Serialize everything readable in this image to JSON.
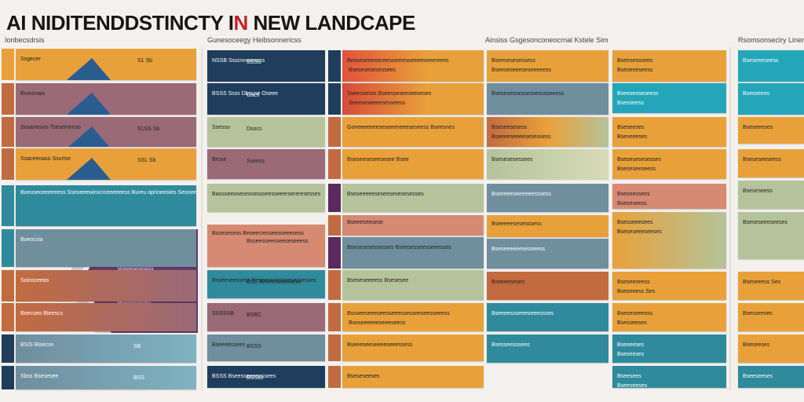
{
  "header": {
    "title_part1": "AI NIDITENDDSTINCTY I",
    "title_red": "N",
    "title_part2": " NEW LANDCAPE"
  },
  "subheadings": [
    "Ionbecsdrsis",
    "Gunesoceegy  Heibsonnericss",
    "Ainsiss  Gsgesonconeocrnal Kstele  Sim",
    "Rsomsonseciry  Liners"
  ],
  "columns": {
    "col1": {
      "items": [
        {
          "label": "Ssgecer",
          "value": "S1 Sb"
        },
        {
          "label": "Bruncnais",
          "value": ""
        },
        {
          "label": "Sosanesvis Tsesemenso",
          "value": "S1SS Sb"
        },
        {
          "label": "Ssaceenaso Ssurtse",
          "value": "SSL  Sb"
        },
        {
          "label": "Boeoseceeeeeess  Sseoeeewirocrceeeeeess  Bureu oprineeoies  Sesneeewereestesseseeeceeeere",
          "value": ""
        },
        {
          "label": "Boeocsia",
          "value": ""
        },
        {
          "label": "Soinsceeas",
          "value": ""
        },
        {
          "label": "Boecseo Bteescs",
          "value": ""
        },
        {
          "label": "BSIS Bisecse",
          "value": "SB"
        },
        {
          "label": "Sbss Bsesesee",
          "value": "BSS"
        }
      ],
      "panel_lines": [
        "Bsee Rsesreerw",
        "Sseesoeeeesesess",
        "Ssseoeeeresees",
        "Bseeesesesess",
        "Bsesseessess",
        "Sesesasses",
        "Boesesesees",
        "Bseeeesesess",
        "Bseseses Bs",
        "Bsesess Bsee"
      ]
    },
    "col2": {
      "items": [
        {
          "label": "NSSB Ssscnnereress",
          "value": "SSSS"
        },
        {
          "label": "BSSS  Ssss Dbscne Oseee",
          "value": "Gscs"
        },
        {
          "label": "Ssesso",
          "value": "Dsocs"
        },
        {
          "label": "Brose",
          "value": "Sseess"
        },
        {
          "label": "Baosseeosecesnessseesseeersereresesses",
          "value": ""
        },
        {
          "label": "Bssesesess Beseecresseesseeesess",
          "value": "Bsseesseesseeseseeess"
        },
        {
          "label": "Bsseeseessess   Beseessnesseesessesses",
          "value": "BSC  Beseesseessess"
        },
        {
          "label": "SSSSSB",
          "value": "BSBC"
        },
        {
          "label": "Bseeeessees",
          "value": "BSSS"
        },
        {
          "label": "BSSS Bseesseeeeessees",
          "value": "BSSss"
        }
      ]
    },
    "col3": {
      "items": [
        {
          "label": "Besseseeeseceesseeresseeeeseeereees",
          "value": "Bsesesesesessees"
        },
        {
          "label": "Sseeosesss Bseesseseeseeseses",
          "value": "Seeeseseeeesesseess"
        },
        {
          "label": "Goneeeeeeeseseeeneeeseseess Bseesnes",
          "value": ""
        },
        {
          "label": "Bseseeseseesesee  Bsee",
          "value": ""
        },
        {
          "label": "Bseseeeeeseseesesesesesses",
          "value": ""
        },
        {
          "label": "Bseeeseesese",
          "value": ""
        },
        {
          "label": "Bsesesesessesses Bseesesseesseeesses",
          "value": ""
        },
        {
          "label": "Bseseseeeess  Bsesesee",
          "value": ""
        },
        {
          "label": "Bssseeseeeseesseeessesseeseesseeess",
          "value": "Bseseeeeeeseeeseess"
        },
        {
          "label": "Bseeeseeseeeeseeessess",
          "value": ""
        },
        {
          "label": "Bseseseeses",
          "value": ""
        }
      ]
    },
    "col4": {
      "items": [
        {
          "label": "Bseesesesessess",
          "value": "Bseeseseeeseseeeeess"
        },
        {
          "label": "Bsesesessessessesssseeess",
          "value": ""
        },
        {
          "label": "Bseseesesess",
          "value": "Bseeeeseeeesesessess"
        },
        {
          "label": "Bsesesesessees",
          "value": ""
        },
        {
          "label": "Bseeeeeseeeeeesssess",
          "value": ""
        },
        {
          "label": "Bseeeeesesesssess",
          "value": ""
        },
        {
          "label": "Bseseeeeeesesseess",
          "value": ""
        },
        {
          "label": "Bseeeeseses",
          "value": ""
        },
        {
          "label": "Bseeeessseeeseeessses",
          "value": ""
        },
        {
          "label": "Bsesseesssees",
          "value": ""
        }
      ]
    },
    "col5": {
      "items": [
        {
          "label": "Bseesesssees",
          "value": "Bseseeeseess"
        },
        {
          "label": "Bseesesseseess",
          "value": "Bsesseess"
        },
        {
          "label": "Bseseeses",
          "value": "Bseseeeses"
        },
        {
          "label": "Bsesesesesesses",
          "value": "Bseseseeseess"
        },
        {
          "label": "Bseseessees",
          "value": "Bseseseess"
        },
        {
          "label": "Bsesseeesees",
          "value": "Bseseseeeseeses"
        },
        {
          "label": "Bseseeseess",
          "value": "Bseseeess Ses"
        },
        {
          "label": "Bseseseeesss",
          "value": "Bsesseeses"
        },
        {
          "label": "Bseseeses",
          "value": "Bseseeses"
        },
        {
          "label": "Bseesees",
          "value": "Bseeseeses"
        }
      ]
    }
  },
  "colors": {
    "orange": "#e8a13a",
    "teal": "#2f8a9c",
    "navy": "#1f3d5c",
    "mauve": "#9a6a78",
    "sage": "#b5c39a",
    "rust": "#c26b40",
    "salmon": "#d68a72",
    "slate": "#6f8e9e",
    "cyan": "#24a6b8",
    "purple": "#5a2a5e",
    "accent_red": "#c8202a"
  }
}
